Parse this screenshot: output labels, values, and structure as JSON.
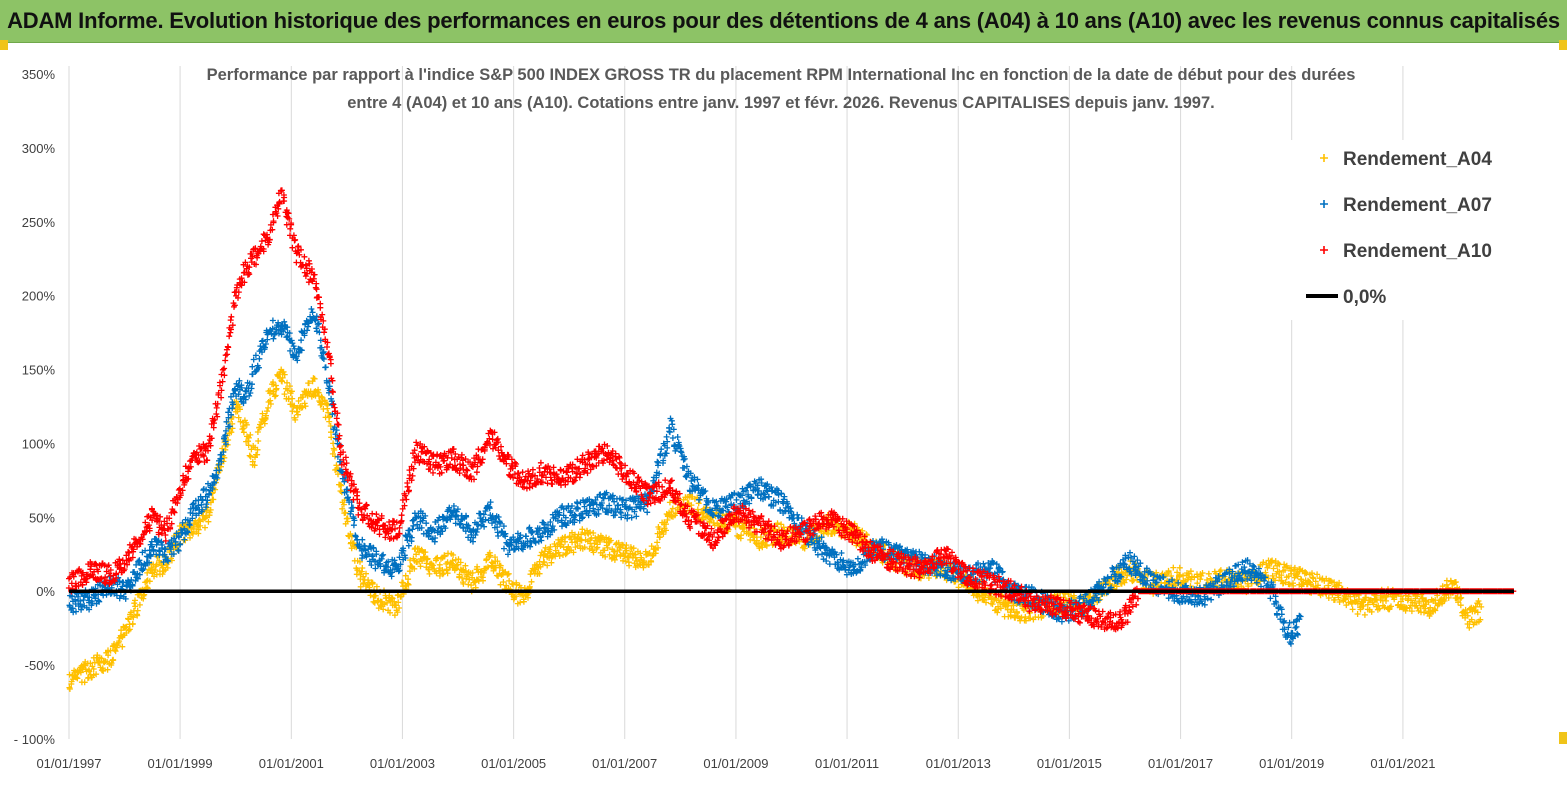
{
  "banner": {
    "title": "ADAM Informe. Evolution historique des performances en euros pour des détentions de 4 ans (A04) à 10 ans (A10) avec les revenus connus capitalisés"
  },
  "chart_data": {
    "type": "scatter",
    "title_lines": [
      "Performance par rapport à l'indice S&P 500 INDEX GROSS TR  du placement RPM International Inc en fonction de la date de début pour des durées",
      "entre 4 (A04) et 10 ans (A10). Cotations entre janv. 1997 et févr. 2026. Revenus CAPITALISES depuis janv. 1997."
    ],
    "xlabel": "",
    "ylabel": "",
    "x_range": [
      "1997-01-01",
      "2023-01-01"
    ],
    "ylim": [
      -100,
      350
    ],
    "y_ticks": [
      -100,
      -50,
      0,
      50,
      100,
      150,
      200,
      250,
      300,
      350
    ],
    "y_tick_labels": [
      "- 100%",
      "-50%",
      "0%",
      "50%",
      "100%",
      "150%",
      "200%",
      "250%",
      "300%",
      "350%"
    ],
    "x_tick_labels": [
      "01/01/1997",
      "01/01/1999",
      "01/01/2001",
      "01/01/2003",
      "01/01/2005",
      "01/01/2007",
      "01/01/2009",
      "01/01/2011",
      "01/01/2013",
      "01/01/2015",
      "01/01/2017",
      "01/01/2019",
      "01/01/2021"
    ],
    "grid": "vertical",
    "legend_position": "top-right",
    "marker": "+",
    "colors": {
      "A04": "#ffc000",
      "A07": "#0070c0",
      "A10": "#ff0000",
      "zero": "#000000"
    },
    "series": [
      {
        "name": "Rendement_A04",
        "color": "#ffc000",
        "points": [
          [
            "1997-01-01",
            -60
          ],
          [
            "1997-06-01",
            -52
          ],
          [
            "1997-10-01",
            -45
          ],
          [
            "1998-01-01",
            -28
          ],
          [
            "1998-04-01",
            -8
          ],
          [
            "1998-07-01",
            15
          ],
          [
            "1998-10-01",
            20
          ],
          [
            "1999-01-01",
            38
          ],
          [
            "1999-04-01",
            42
          ],
          [
            "1999-07-01",
            50
          ],
          [
            "1999-10-01",
            90
          ],
          [
            "2000-01-01",
            125
          ],
          [
            "2000-03-01",
            110
          ],
          [
            "2000-05-01",
            90
          ],
          [
            "2000-08-01",
            130
          ],
          [
            "2000-11-01",
            145
          ],
          [
            "2001-02-01",
            120
          ],
          [
            "2001-06-01",
            140
          ],
          [
            "2001-09-01",
            120
          ],
          [
            "2001-12-01",
            60
          ],
          [
            "2002-04-01",
            10
          ],
          [
            "2002-08-01",
            -5
          ],
          [
            "2002-12-01",
            -10
          ],
          [
            "2003-04-01",
            25
          ],
          [
            "2003-08-01",
            15
          ],
          [
            "2003-12-01",
            20
          ],
          [
            "2004-04-01",
            5
          ],
          [
            "2004-08-01",
            20
          ],
          [
            "2004-12-01",
            5
          ],
          [
            "2005-03-01",
            -5
          ],
          [
            "2005-07-01",
            20
          ],
          [
            "2005-11-01",
            30
          ],
          [
            "2006-04-01",
            35
          ],
          [
            "2006-09-01",
            30
          ],
          [
            "2007-01-01",
            25
          ],
          [
            "2007-06-01",
            20
          ],
          [
            "2007-11-01",
            55
          ],
          [
            "2008-03-01",
            60
          ],
          [
            "2008-08-01",
            50
          ],
          [
            "2009-01-01",
            45
          ],
          [
            "2009-06-01",
            35
          ],
          [
            "2009-11-01",
            40
          ],
          [
            "2010-04-01",
            35
          ],
          [
            "2010-09-01",
            45
          ],
          [
            "2011-02-01",
            40
          ],
          [
            "2011-07-01",
            30
          ],
          [
            "2011-12-01",
            20
          ],
          [
            "2012-05-01",
            15
          ],
          [
            "2012-10-01",
            15
          ],
          [
            "2013-03-01",
            5
          ],
          [
            "2013-08-01",
            -5
          ],
          [
            "2014-01-01",
            -15
          ],
          [
            "2014-06-01",
            -12
          ],
          [
            "2014-11-01",
            -8
          ],
          [
            "2015-04-01",
            -10
          ],
          [
            "2015-09-01",
            5
          ],
          [
            "2016-02-01",
            15
          ],
          [
            "2016-07-01",
            5
          ],
          [
            "2016-12-01",
            10
          ],
          [
            "2017-05-01",
            5
          ],
          [
            "2017-10-01",
            8
          ],
          [
            "2018-03-01",
            5
          ],
          [
            "2018-08-01",
            15
          ],
          [
            "2019-01-01",
            10
          ],
          [
            "2019-06-01",
            5
          ],
          [
            "2019-11-01",
            0
          ],
          [
            "2020-04-01",
            -10
          ],
          [
            "2020-09-01",
            -5
          ],
          [
            "2021-02-01",
            -8
          ],
          [
            "2021-07-01",
            -10
          ],
          [
            "2021-12-01",
            5
          ],
          [
            "2022-03-01",
            -20
          ],
          [
            "2022-06-01",
            -12
          ]
        ]
      },
      {
        "name": "Rendement_A07",
        "color": "#0070c0",
        "points": [
          [
            "1997-01-01",
            -8
          ],
          [
            "1997-06-01",
            -5
          ],
          [
            "1997-10-01",
            5
          ],
          [
            "1998-01-01",
            0
          ],
          [
            "1998-04-01",
            15
          ],
          [
            "1998-07-01",
            30
          ],
          [
            "1998-10-01",
            25
          ],
          [
            "1999-01-01",
            35
          ],
          [
            "1999-04-01",
            55
          ],
          [
            "1999-07-01",
            65
          ],
          [
            "1999-10-01",
            90
          ],
          [
            "2000-01-01",
            140
          ],
          [
            "2000-03-01",
            130
          ],
          [
            "2000-05-01",
            150
          ],
          [
            "2000-08-01",
            175
          ],
          [
            "2000-11-01",
            180
          ],
          [
            "2001-02-01",
            160
          ],
          [
            "2001-06-01",
            190
          ],
          [
            "2001-09-01",
            140
          ],
          [
            "2001-12-01",
            80
          ],
          [
            "2002-04-01",
            30
          ],
          [
            "2002-08-01",
            20
          ],
          [
            "2002-12-01",
            15
          ],
          [
            "2003-04-01",
            50
          ],
          [
            "2003-08-01",
            40
          ],
          [
            "2003-12-01",
            55
          ],
          [
            "2004-04-01",
            40
          ],
          [
            "2004-08-01",
            55
          ],
          [
            "2004-12-01",
            30
          ],
          [
            "2005-03-01",
            35
          ],
          [
            "2005-07-01",
            40
          ],
          [
            "2005-11-01",
            50
          ],
          [
            "2006-04-01",
            55
          ],
          [
            "2006-09-01",
            60
          ],
          [
            "2007-01-01",
            55
          ],
          [
            "2007-06-01",
            60
          ],
          [
            "2007-11-01",
            110
          ],
          [
            "2008-03-01",
            75
          ],
          [
            "2008-08-01",
            55
          ],
          [
            "2009-01-01",
            60
          ],
          [
            "2009-06-01",
            70
          ],
          [
            "2009-11-01",
            60
          ],
          [
            "2010-04-01",
            40
          ],
          [
            "2010-09-01",
            25
          ],
          [
            "2011-02-01",
            15
          ],
          [
            "2011-07-01",
            30
          ],
          [
            "2011-12-01",
            25
          ],
          [
            "2012-05-01",
            20
          ],
          [
            "2012-10-01",
            15
          ],
          [
            "2013-03-01",
            10
          ],
          [
            "2013-08-01",
            15
          ],
          [
            "2014-01-01",
            0
          ],
          [
            "2014-06-01",
            -5
          ],
          [
            "2014-11-01",
            -15
          ],
          [
            "2015-04-01",
            -10
          ],
          [
            "2015-09-01",
            5
          ],
          [
            "2016-02-01",
            20
          ],
          [
            "2016-07-01",
            5
          ],
          [
            "2016-12-01",
            0
          ],
          [
            "2017-05-01",
            -5
          ],
          [
            "2017-10-01",
            5
          ],
          [
            "2018-03-01",
            15
          ],
          [
            "2018-08-01",
            5
          ],
          [
            "2018-11-01",
            -20
          ],
          [
            "2019-01-01",
            -30
          ],
          [
            "2019-03-01",
            -20
          ]
        ]
      },
      {
        "name": "Rendement_A10",
        "color": "#ff0000",
        "points": [
          [
            "1997-01-01",
            5
          ],
          [
            "1997-06-01",
            15
          ],
          [
            "1997-10-01",
            10
          ],
          [
            "1998-01-01",
            20
          ],
          [
            "1998-04-01",
            35
          ],
          [
            "1998-07-01",
            50
          ],
          [
            "1998-10-01",
            40
          ],
          [
            "1999-01-01",
            70
          ],
          [
            "1999-04-01",
            90
          ],
          [
            "1999-07-01",
            95
          ],
          [
            "1999-10-01",
            140
          ],
          [
            "2000-01-01",
            200
          ],
          [
            "2000-03-01",
            215
          ],
          [
            "2000-05-01",
            225
          ],
          [
            "2000-08-01",
            240
          ],
          [
            "2000-11-01",
            270
          ],
          [
            "2001-02-01",
            230
          ],
          [
            "2001-06-01",
            210
          ],
          [
            "2001-09-01",
            160
          ],
          [
            "2001-12-01",
            90
          ],
          [
            "2002-04-01",
            55
          ],
          [
            "2002-08-01",
            45
          ],
          [
            "2002-12-01",
            40
          ],
          [
            "2003-04-01",
            95
          ],
          [
            "2003-08-01",
            85
          ],
          [
            "2003-12-01",
            90
          ],
          [
            "2004-04-01",
            80
          ],
          [
            "2004-08-01",
            105
          ],
          [
            "2004-12-01",
            85
          ],
          [
            "2005-03-01",
            75
          ],
          [
            "2005-07-01",
            80
          ],
          [
            "2005-11-01",
            75
          ],
          [
            "2006-04-01",
            85
          ],
          [
            "2006-09-01",
            95
          ],
          [
            "2007-01-01",
            80
          ],
          [
            "2007-06-01",
            65
          ],
          [
            "2007-11-01",
            70
          ],
          [
            "2008-03-01",
            50
          ],
          [
            "2008-08-01",
            35
          ],
          [
            "2009-01-01",
            55
          ],
          [
            "2009-06-01",
            45
          ],
          [
            "2009-11-01",
            35
          ],
          [
            "2010-04-01",
            40
          ],
          [
            "2010-09-01",
            50
          ],
          [
            "2011-02-01",
            40
          ],
          [
            "2011-07-01",
            25
          ],
          [
            "2011-12-01",
            20
          ],
          [
            "2012-05-01",
            15
          ],
          [
            "2012-10-01",
            25
          ],
          [
            "2013-03-01",
            10
          ],
          [
            "2013-08-01",
            5
          ],
          [
            "2014-01-01",
            0
          ],
          [
            "2014-06-01",
            -10
          ],
          [
            "2014-11-01",
            -10
          ],
          [
            "2015-04-01",
            -15
          ],
          [
            "2015-09-01",
            -20
          ],
          [
            "2016-01-01",
            -18
          ],
          [
            "2016-04-01",
            0
          ],
          [
            "2022-12-31",
            0
          ]
        ]
      }
    ],
    "reference_line": {
      "name": "0,0%",
      "value": 0
    }
  }
}
